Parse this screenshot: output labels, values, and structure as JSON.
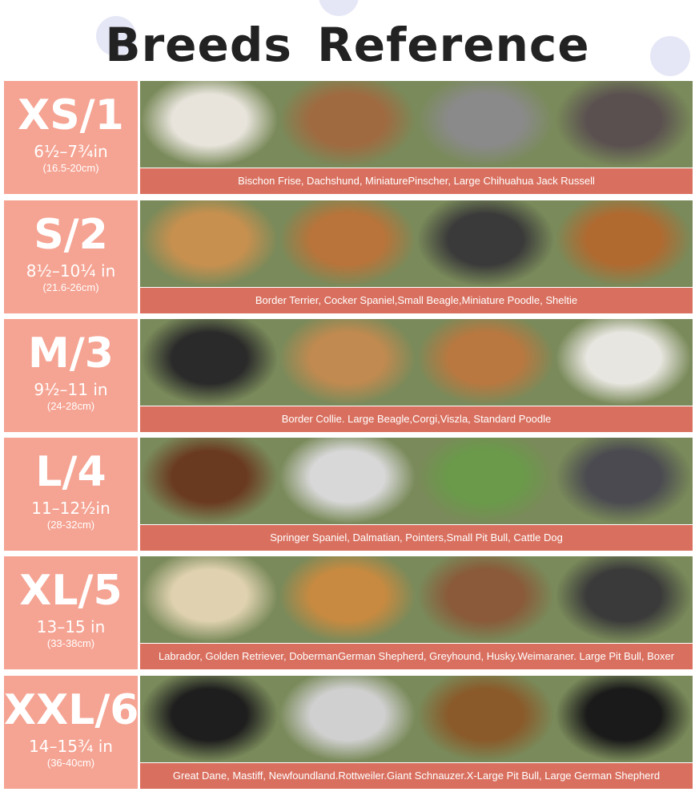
{
  "title": "Breeds Reference",
  "colors": {
    "size_box": "#f5a392",
    "caption_bar": "#d9705f",
    "title": "#222222"
  },
  "rows": [
    {
      "size": "XS/1",
      "inches": "6½–7¾in",
      "cm": "(16.5-20cm)",
      "breeds": "Bischon Frise, Dachshund, MiniaturePinscher, Large Chihuahua Jack Russell",
      "photos": [
        "#e8e4dc",
        "#a06a40",
        "#8a8a8a",
        "#5a5050"
      ]
    },
    {
      "size": "S/2",
      "inches": "8½–10¼ in",
      "cm": "(21.6-26cm)",
      "breeds": "Border Terrier, Cocker Spaniel,Small Beagle,Miniature Poodle, Sheltie",
      "photos": [
        "#c8904f",
        "#b8743a",
        "#3a3a3a",
        "#b06a30"
      ]
    },
    {
      "size": "M/3",
      "inches": "9½–11 in",
      "cm": "(24-28cm)",
      "breeds": "Border Collie. Large Beagle,Corgi,Viszla, Standard Poodle",
      "photos": [
        "#2a2a2a",
        "#c08a50",
        "#b87840",
        "#e8e6e0"
      ]
    },
    {
      "size": "L/4",
      "inches": "11–12½in",
      "cm": "(28-32cm)",
      "breeds": "Springer Spaniel, Dalmatian, Pointers,Small Pit Bull, Cattle Dog",
      "photos": [
        "#6a3a20",
        "#d8d8d8",
        "#6a9a4a",
        "#4a4a50"
      ]
    },
    {
      "size": "XL/5",
      "inches": "13–15 in",
      "cm": "(33-38cm)",
      "breeds": "Labrador, Golden Retriever, DobermanGerman Shepherd, Greyhound, Husky.Weimaraner. Large Pit Bull, Boxer",
      "photos": [
        "#e0d2b0",
        "#c88a40",
        "#8a5a3a",
        "#3a3a3a"
      ]
    },
    {
      "size": "XXL/6",
      "inches": "14–15¾ in",
      "cm": "(36-40cm)",
      "breeds": "Great Dane, Mastiff, Newfoundland.Rottweiler.Giant Schnauzer.X-Large Pit Bull, Large German Shepherd",
      "photos": [
        "#1e1e1e",
        "#d0d0d0",
        "#8a5a2a",
        "#1a1a1a"
      ]
    }
  ]
}
